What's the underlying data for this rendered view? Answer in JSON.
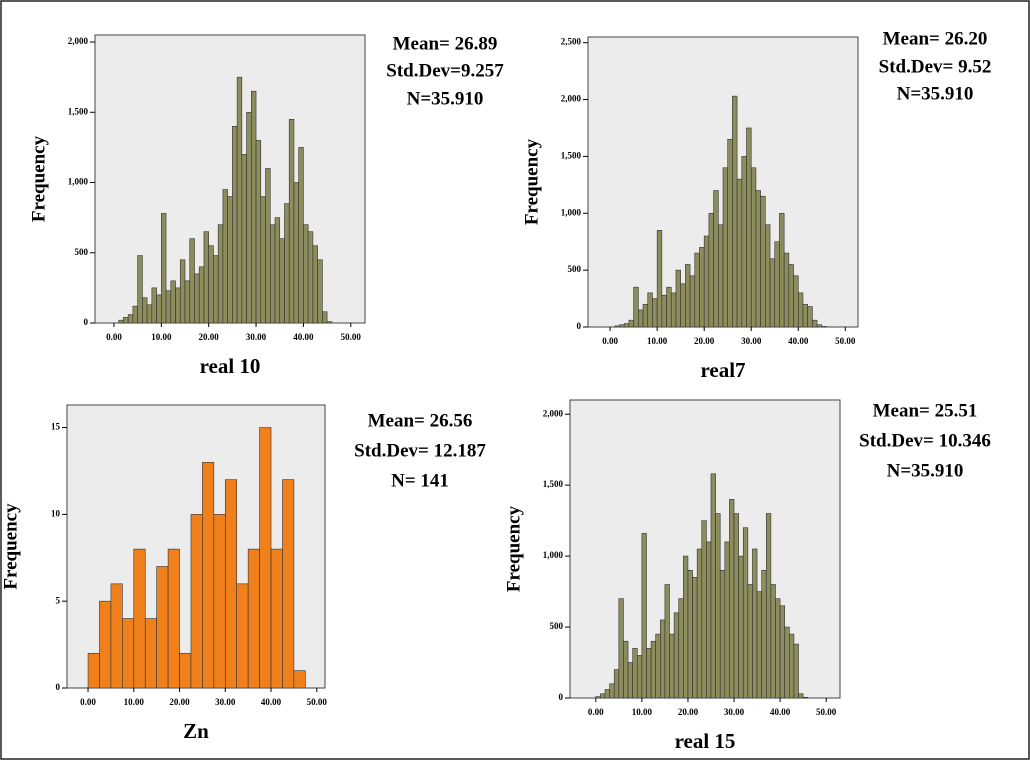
{
  "chart_data": [
    {
      "type": "histogram",
      "x_label": "real 10",
      "y_label": "Frequency",
      "color": "#8c8c5c",
      "bins": [
        0,
        1,
        2,
        3,
        4,
        5,
        6,
        7,
        8,
        9,
        10,
        11,
        12,
        13,
        14,
        15,
        16,
        17,
        18,
        19,
        20,
        21,
        22,
        23,
        24,
        25,
        26,
        27,
        28,
        29,
        30,
        31,
        32,
        33,
        34,
        35,
        36,
        37,
        38,
        39,
        40,
        41,
        42,
        43,
        44,
        45,
        46
      ],
      "values": [
        0,
        20,
        40,
        60,
        120,
        480,
        180,
        130,
        250,
        200,
        780,
        230,
        300,
        250,
        450,
        300,
        600,
        350,
        400,
        650,
        550,
        480,
        700,
        950,
        900,
        1400,
        1750,
        1200,
        1500,
        1650,
        1300,
        900,
        1100,
        700,
        750,
        600,
        850,
        1450,
        1000,
        1250,
        700,
        650,
        550,
        450,
        80,
        10
      ],
      "xlim": [
        -4,
        53
      ],
      "ylim": [
        0,
        2050
      ],
      "xticks": [
        {
          "value": 0,
          "label": "0.00"
        },
        {
          "value": 10,
          "label": "10.00"
        },
        {
          "value": 20,
          "label": "20.00"
        },
        {
          "value": 30,
          "label": "30.00"
        },
        {
          "value": 40,
          "label": "40.00"
        },
        {
          "value": 50,
          "label": "50.00"
        }
      ],
      "yticks": [
        0,
        500,
        {
          "value": 1000,
          "label": "1,000"
        },
        {
          "value": 1500,
          "label": "1,500"
        },
        {
          "value": 2000,
          "label": "2,000"
        }
      ],
      "annotations": [
        "Mean= 26.89",
        "Std.Dev=9.257",
        "N=35.910"
      ]
    },
    {
      "type": "histogram",
      "x_label": "real7",
      "y_label": "Frequency",
      "color": "#8c8c5c",
      "bins": [
        0,
        1,
        2,
        3,
        4,
        5,
        6,
        7,
        8,
        9,
        10,
        11,
        12,
        13,
        14,
        15,
        16,
        17,
        18,
        19,
        20,
        21,
        22,
        23,
        24,
        25,
        26,
        27,
        28,
        29,
        30,
        31,
        32,
        33,
        34,
        35,
        36,
        37,
        38,
        39,
        40,
        41,
        42,
        43,
        44,
        45,
        46
      ],
      "values": [
        0,
        10,
        20,
        30,
        60,
        350,
        150,
        200,
        300,
        250,
        850,
        280,
        350,
        300,
        500,
        380,
        550,
        450,
        650,
        700,
        800,
        1000,
        1200,
        900,
        1400,
        1650,
        2030,
        1300,
        1500,
        1750,
        1400,
        1200,
        1150,
        900,
        600,
        750,
        1000,
        650,
        550,
        450,
        300,
        200,
        180,
        60,
        20,
        5
      ],
      "xlim": [
        -4.7,
        52.7
      ],
      "ylim": [
        0,
        2550
      ],
      "xticks": [
        {
          "value": 0,
          "label": "0.00"
        },
        {
          "value": 10,
          "label": "10.00"
        },
        {
          "value": 20,
          "label": "20.00"
        },
        {
          "value": 30,
          "label": "30.00"
        },
        {
          "value": 40,
          "label": "40.00"
        },
        {
          "value": 50,
          "label": "50.00"
        }
      ],
      "yticks": [
        0,
        500,
        {
          "value": 1000,
          "label": "1,000"
        },
        {
          "value": 1500,
          "label": "1,500"
        },
        {
          "value": 2000,
          "label": "2,000"
        },
        {
          "value": 2500,
          "label": "2,500"
        }
      ],
      "annotations": [
        "Mean= 26.20",
        "Std.Dev= 9.52",
        "N=35.910"
      ]
    },
    {
      "type": "histogram",
      "x_label": "Zn",
      "y_label": "Frequency",
      "color": "#f0801c",
      "bins": [
        0,
        2.5,
        5,
        7.5,
        10,
        12.5,
        15,
        17.5,
        20,
        22.5,
        25,
        27.5,
        30,
        32.5,
        35,
        37.5,
        40,
        42.5,
        45,
        47.5
      ],
      "values": [
        2,
        5,
        6,
        4,
        8,
        4,
        7,
        8,
        2,
        10,
        13,
        10,
        12,
        6,
        8,
        15,
        8,
        12,
        1
      ],
      "xlim": [
        -4.6,
        51.8
      ],
      "ylim": [
        0,
        16.3
      ],
      "xticks": [
        {
          "value": 0,
          "label": "0.00"
        },
        {
          "value": 10,
          "label": "10.00"
        },
        {
          "value": 20,
          "label": "20.00"
        },
        {
          "value": 30,
          "label": "30.00"
        },
        {
          "value": 40,
          "label": "40.00"
        },
        {
          "value": 50,
          "label": "50.00"
        }
      ],
      "yticks": [
        0,
        5,
        10,
        15
      ],
      "annotations": [
        "Mean= 26.56",
        "Std.Dev= 12.187",
        "N= 141"
      ]
    },
    {
      "type": "histogram",
      "x_label": "real 15",
      "y_label": "Frequency",
      "color": "#8c8c5c",
      "bins": [
        0,
        1,
        2,
        3,
        4,
        5,
        6,
        7,
        8,
        9,
        10,
        11,
        12,
        13,
        14,
        15,
        16,
        17,
        18,
        19,
        20,
        21,
        22,
        23,
        24,
        25,
        26,
        27,
        28,
        29,
        30,
        31,
        32,
        33,
        34,
        35,
        36,
        37,
        38,
        39,
        40,
        41,
        42,
        43,
        44,
        45,
        46
      ],
      "values": [
        10,
        30,
        60,
        100,
        200,
        700,
        400,
        250,
        350,
        300,
        1160,
        350,
        400,
        450,
        550,
        800,
        450,
        600,
        700,
        1000,
        900,
        850,
        1050,
        1250,
        1100,
        1580,
        1300,
        900,
        1100,
        1400,
        1300,
        1000,
        1200,
        800,
        1050,
        750,
        900,
        1300,
        800,
        700,
        650,
        500,
        450,
        380,
        30,
        5
      ],
      "xlim": [
        -5.6,
        53
      ],
      "ylim": [
        0,
        2100
      ],
      "xticks": [
        {
          "value": 0,
          "label": "0.00"
        },
        {
          "value": 10,
          "label": "10.00"
        },
        {
          "value": 20,
          "label": "20.00"
        },
        {
          "value": 30,
          "label": "30.00"
        },
        {
          "value": 40,
          "label": "40.00"
        },
        {
          "value": 50,
          "label": "50.00"
        }
      ],
      "yticks": [
        0,
        500,
        {
          "value": 1000,
          "label": "1,000"
        },
        {
          "value": 1500,
          "label": "1,500"
        },
        {
          "value": 2000,
          "label": "2,000"
        }
      ],
      "annotations": [
        "Mean= 25.51",
        "Std.Dev= 10.346",
        "N=35.910"
      ]
    }
  ]
}
